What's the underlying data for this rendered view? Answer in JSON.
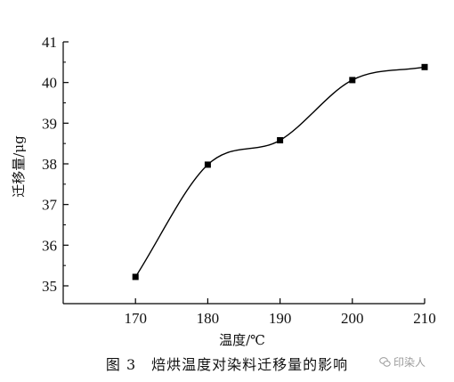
{
  "chart_data": {
    "type": "scatter",
    "x": [
      170,
      180,
      190,
      200,
      210
    ],
    "y": [
      35.22,
      37.98,
      38.58,
      40.06,
      40.38
    ],
    "xlabel": "温度/℃",
    "ylabel": "迁移量/μg",
    "xlim": [
      160,
      210
    ],
    "ylim": [
      35,
      41
    ],
    "xticks": [
      170,
      180,
      190,
      200,
      210
    ],
    "yticks": [
      35,
      36,
      37,
      38,
      39,
      40,
      41
    ],
    "marker": "square",
    "trend_line": "smooth-fit",
    "grid": false,
    "colors": {
      "marks": "#000000",
      "axes": "#000000"
    }
  },
  "caption": "图 3　焙烘温度对染料迁移量的影响",
  "watermark": {
    "text": "印染人",
    "icon": "chat-bubbles-icon"
  }
}
